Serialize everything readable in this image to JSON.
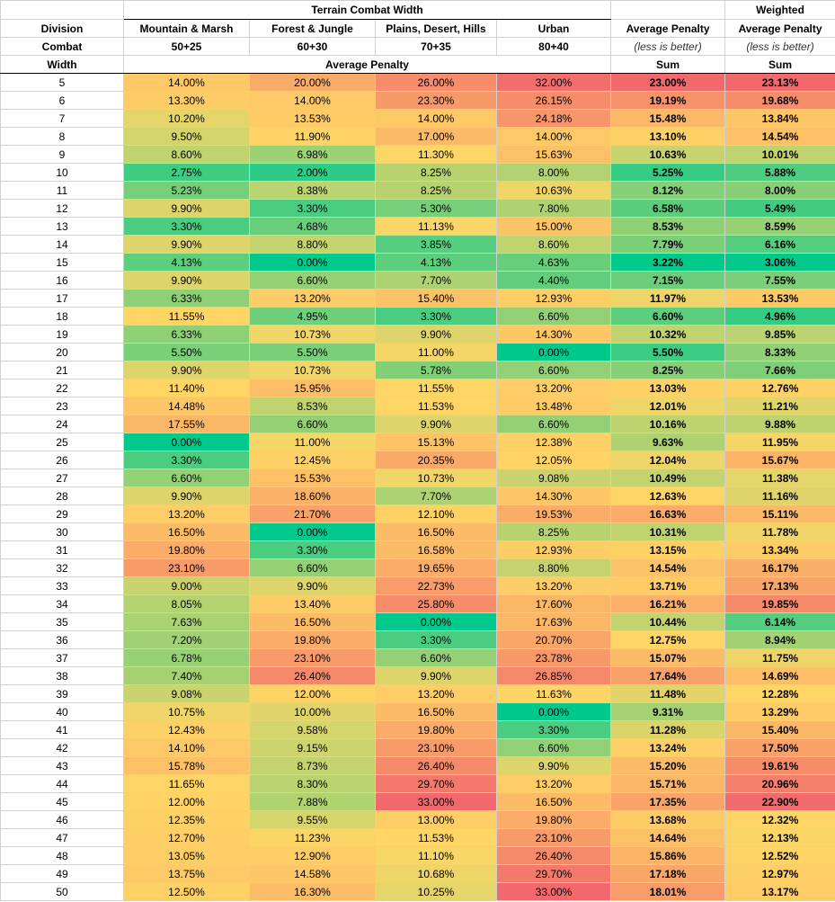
{
  "header": {
    "division_label": [
      "Division",
      "Combat",
      "Width"
    ],
    "terrain_title": "Terrain Combat Width",
    "terrains": [
      {
        "name": "Mountain & Marsh",
        "width": "50+25"
      },
      {
        "name": "Forest & Jungle",
        "width": "60+30"
      },
      {
        "name": "Plains, Desert, Hills",
        "width": "70+35"
      },
      {
        "name": "Urban",
        "width": "80+40"
      }
    ],
    "terrain_subheader": "Average Penalty",
    "average": {
      "title": "Average Penalty",
      "note": "(less is better)",
      "sub": "Sum"
    },
    "weighted": {
      "top": "Weighted",
      "title": "Average Penalty",
      "note": "(less is better)",
      "sub": "Sum"
    }
  },
  "table": {
    "rows": [
      [
        5,
        "14.00%",
        "20.00%",
        "26.00%",
        "32.00%",
        "23.00%",
        "23.13%"
      ],
      [
        6,
        "13.30%",
        "14.00%",
        "23.30%",
        "26.15%",
        "19.19%",
        "19.68%"
      ],
      [
        7,
        "10.20%",
        "13.53%",
        "14.00%",
        "24.18%",
        "15.48%",
        "13.84%"
      ],
      [
        8,
        "9.50%",
        "11.90%",
        "17.00%",
        "14.00%",
        "13.10%",
        "14.54%"
      ],
      [
        9,
        "8.60%",
        "6.98%",
        "11.30%",
        "15.63%",
        "10.63%",
        "10.01%"
      ],
      [
        10,
        "2.75%",
        "2.00%",
        "8.25%",
        "8.00%",
        "5.25%",
        "5.88%"
      ],
      [
        11,
        "5.23%",
        "8.38%",
        "8.25%",
        "10.63%",
        "8.12%",
        "8.00%"
      ],
      [
        12,
        "9.90%",
        "3.30%",
        "5.30%",
        "7.80%",
        "6.58%",
        "5.49%"
      ],
      [
        13,
        "3.30%",
        "4.68%",
        "11.13%",
        "15.00%",
        "8.53%",
        "8.59%"
      ],
      [
        14,
        "9.90%",
        "8.80%",
        "3.85%",
        "8.60%",
        "7.79%",
        "6.16%"
      ],
      [
        15,
        "4.13%",
        "0.00%",
        "4.13%",
        "4.63%",
        "3.22%",
        "3.06%"
      ],
      [
        16,
        "9.90%",
        "6.60%",
        "7.70%",
        "4.40%",
        "7.15%",
        "7.55%"
      ],
      [
        17,
        "6.33%",
        "13.20%",
        "15.40%",
        "12.93%",
        "11.97%",
        "13.53%"
      ],
      [
        18,
        "11.55%",
        "4.95%",
        "3.30%",
        "6.60%",
        "6.60%",
        "4.96%"
      ],
      [
        19,
        "6.33%",
        "10.73%",
        "9.90%",
        "14.30%",
        "10.32%",
        "9.85%"
      ],
      [
        20,
        "5.50%",
        "5.50%",
        "11.00%",
        "0.00%",
        "5.50%",
        "8.33%"
      ],
      [
        21,
        "9.90%",
        "10.73%",
        "5.78%",
        "6.60%",
        "8.25%",
        "7.66%"
      ],
      [
        22,
        "11.40%",
        "15.95%",
        "11.55%",
        "13.20%",
        "13.03%",
        "12.76%"
      ],
      [
        23,
        "14.48%",
        "8.53%",
        "11.53%",
        "13.48%",
        "12.01%",
        "11.21%"
      ],
      [
        24,
        "17.55%",
        "6.60%",
        "9.90%",
        "6.60%",
        "10.16%",
        "9.88%"
      ],
      [
        25,
        "0.00%",
        "11.00%",
        "15.13%",
        "12.38%",
        "9.63%",
        "11.95%"
      ],
      [
        26,
        "3.30%",
        "12.45%",
        "20.35%",
        "12.05%",
        "12.04%",
        "15.67%"
      ],
      [
        27,
        "6.60%",
        "15.53%",
        "10.73%",
        "9.08%",
        "10.49%",
        "11.38%"
      ],
      [
        28,
        "9.90%",
        "18.60%",
        "7.70%",
        "14.30%",
        "12.63%",
        "11.16%"
      ],
      [
        29,
        "13.20%",
        "21.70%",
        "12.10%",
        "19.53%",
        "16.63%",
        "15.11%"
      ],
      [
        30,
        "16.50%",
        "0.00%",
        "16.50%",
        "8.25%",
        "10.31%",
        "11.78%"
      ],
      [
        31,
        "19.80%",
        "3.30%",
        "16.58%",
        "12.93%",
        "13.15%",
        "13.34%"
      ],
      [
        32,
        "23.10%",
        "6.60%",
        "19.65%",
        "8.80%",
        "14.54%",
        "16.17%"
      ],
      [
        33,
        "9.00%",
        "9.90%",
        "22.73%",
        "13.20%",
        "13.71%",
        "17.13%"
      ],
      [
        34,
        "8.05%",
        "13.40%",
        "25.80%",
        "17.60%",
        "16.21%",
        "19.85%"
      ],
      [
        35,
        "7.63%",
        "16.50%",
        "0.00%",
        "17.63%",
        "10.44%",
        "6.14%"
      ],
      [
        36,
        "7.20%",
        "19.80%",
        "3.30%",
        "20.70%",
        "12.75%",
        "8.94%"
      ],
      [
        37,
        "6.78%",
        "23.10%",
        "6.60%",
        "23.78%",
        "15.07%",
        "11.75%"
      ],
      [
        38,
        "7.40%",
        "26.40%",
        "9.90%",
        "26.85%",
        "17.64%",
        "14.69%"
      ],
      [
        39,
        "9.08%",
        "12.00%",
        "13.20%",
        "11.63%",
        "11.48%",
        "12.28%"
      ],
      [
        40,
        "10.75%",
        "10.00%",
        "16.50%",
        "0.00%",
        "9.31%",
        "13.29%"
      ],
      [
        41,
        "12.43%",
        "9.58%",
        "19.80%",
        "3.30%",
        "11.28%",
        "15.40%"
      ],
      [
        42,
        "14.10%",
        "9.15%",
        "23.10%",
        "6.60%",
        "13.24%",
        "17.50%"
      ],
      [
        43,
        "15.78%",
        "8.73%",
        "26.40%",
        "9.90%",
        "15.20%",
        "19.61%"
      ],
      [
        44,
        "11.65%",
        "8.30%",
        "29.70%",
        "13.20%",
        "15.71%",
        "20.96%"
      ],
      [
        45,
        "12.00%",
        "7.88%",
        "33.00%",
        "16.50%",
        "17.35%",
        "22.90%"
      ],
      [
        46,
        "12.35%",
        "9.55%",
        "13.00%",
        "19.80%",
        "13.68%",
        "12.32%"
      ],
      [
        47,
        "12.70%",
        "11.23%",
        "11.53%",
        "23.10%",
        "14.64%",
        "12.13%"
      ],
      [
        48,
        "13.05%",
        "12.90%",
        "11.10%",
        "26.40%",
        "15.86%",
        "12.52%"
      ],
      [
        49,
        "13.75%",
        "14.58%",
        "10.68%",
        "29.70%",
        "17.18%",
        "12.97%"
      ],
      [
        50,
        "12.50%",
        "16.30%",
        "10.25%",
        "33.00%",
        "18.01%",
        "13.17%"
      ]
    ]
  }
}
